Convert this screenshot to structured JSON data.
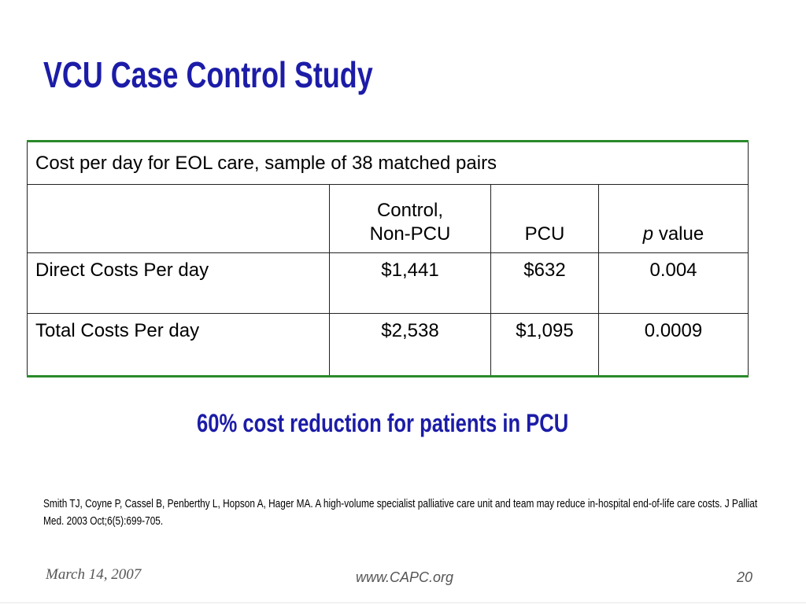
{
  "title": "VCU Case Control Study",
  "table": {
    "caption": "Cost per day for EOL care, sample of 38 matched pairs",
    "headers": [
      "",
      "Control,",
      "Non-PCU",
      "PCU",
      "p",
      "value"
    ],
    "rows": [
      {
        "label": "Direct Costs Per day",
        "control": "$1,441",
        "pcu": "$632",
        "p": "0.004"
      },
      {
        "label": "Total Costs Per day",
        "control": "$2,538",
        "pcu": "$1,095",
        "p": "0.0009"
      }
    ],
    "border_accent": "#2a8a2a"
  },
  "conclusion": "60% cost reduction for patients in PCU",
  "reference": "Smith TJ, Coyne P, Cassel B, Penberthy L, Hopson A, Hager MA.  A high-volume specialist palliative care unit and team may reduce in-hospital end-of-life care costs. J Palliat Med. 2003 Oct;6(5):699-705.",
  "footer": {
    "date": "March 14, 2007",
    "url": "www.CAPC.org",
    "page": "20"
  },
  "colors": {
    "title": "#1c1ca8"
  }
}
